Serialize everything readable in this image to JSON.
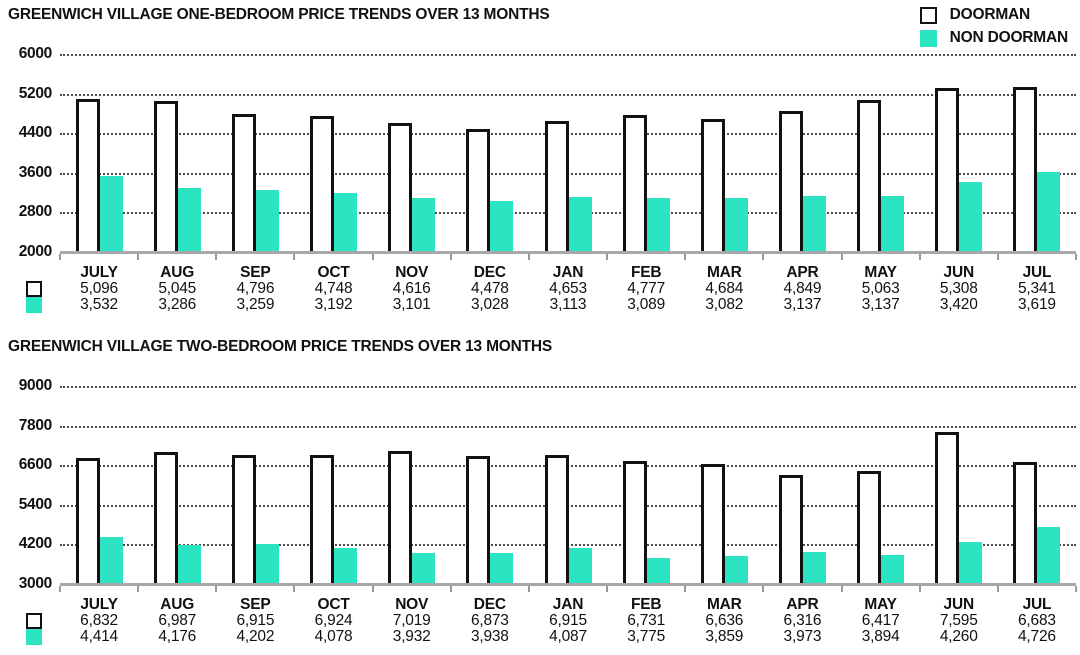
{
  "colors": {
    "teal": "#2de4c2",
    "doorman_fill": "#ffffff",
    "doorman_border": "#111111",
    "baseline_gray": "#a8a8a8",
    "text": "#111111"
  },
  "legend": {
    "doorman_label": "DOORMAN",
    "non_doorman_label": "NON DOORMAN"
  },
  "chart_data": [
    {
      "type": "bar",
      "title": "GREENWICH VILLAGE ONE-BEDROOM PRICE TRENDS OVER 13 MONTHS",
      "categories": [
        "JULY",
        "AUG",
        "SEP",
        "OCT",
        "NOV",
        "DEC",
        "JAN",
        "FEB",
        "MAR",
        "APR",
        "MAY",
        "JUN",
        "JUL"
      ],
      "series": [
        {
          "name": "DOORMAN",
          "values": [
            5096,
            5045,
            4796,
            4748,
            4616,
            4478,
            4653,
            4777,
            4684,
            4849,
            5063,
            5308,
            5341
          ]
        },
        {
          "name": "NON DOORMAN",
          "values": [
            3532,
            3286,
            3259,
            3192,
            3101,
            3028,
            3113,
            3089,
            3082,
            3137,
            3137,
            3420,
            3619
          ]
        }
      ],
      "ylim": [
        2000,
        6000
      ],
      "yticks": [
        2000,
        2800,
        3600,
        4400,
        5200,
        6000
      ],
      "grid": "horizontal-dotted",
      "legend_position": "top-right"
    },
    {
      "type": "bar",
      "title": "GREENWICH VILLAGE TWO-BEDROOM PRICE TRENDS OVER 13 MONTHS",
      "categories": [
        "JULY",
        "AUG",
        "SEP",
        "OCT",
        "NOV",
        "DEC",
        "JAN",
        "FEB",
        "MAR",
        "APR",
        "MAY",
        "JUN",
        "JUL"
      ],
      "series": [
        {
          "name": "DOORMAN",
          "values": [
            6832,
            6987,
            6915,
            6924,
            7019,
            6873,
            6915,
            6731,
            6636,
            6316,
            6417,
            7595,
            6683
          ]
        },
        {
          "name": "NON DOORMAN",
          "values": [
            4414,
            4176,
            4202,
            4078,
            3932,
            3938,
            4087,
            3775,
            3859,
            3973,
            3894,
            4260,
            4726
          ]
        }
      ],
      "ylim": [
        3000,
        9000
      ],
      "yticks": [
        3000,
        4200,
        5400,
        6600,
        7800,
        9000
      ],
      "grid": "horizontal-dotted",
      "legend_position": "none"
    }
  ]
}
